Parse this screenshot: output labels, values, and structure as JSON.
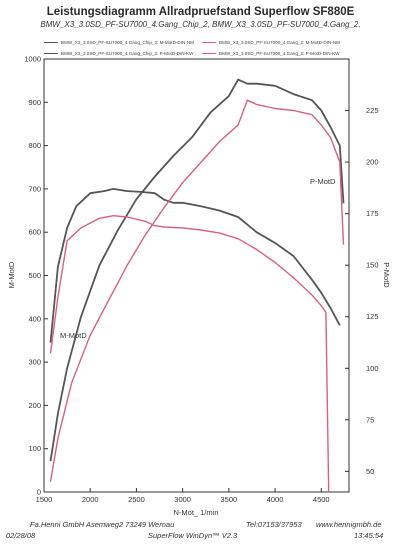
{
  "chart_data": {
    "type": "line",
    "title": "Leistungsdiagramm Allradpruefstand Superflow SF880E",
    "subtitle": "BMW_X3_3.0SD_PF-SU7000_4.Gang_Chip_2, BMW_X3_3.0SD_PF-SU7000_4.Gang_2,",
    "xlabel": "N-Mot_ 1/min",
    "ylabel_left": "M-MotD",
    "ylabel_right": "P-MotD",
    "xlim": [
      1500,
      4800
    ],
    "ylim_left": [
      0,
      1000
    ],
    "ylim_right": [
      40,
      250
    ],
    "x_ticks": [
      1500,
      2000,
      2500,
      3000,
      3500,
      4000,
      4500
    ],
    "y_ticks_left": [
      0,
      100,
      200,
      300,
      400,
      500,
      600,
      700,
      800,
      900,
      1000
    ],
    "y_ticks_right": [
      50,
      75,
      100,
      125,
      150,
      175,
      200,
      225
    ],
    "grid": false,
    "legend": [
      "BMW_X3_3.0SD_PF-SU7000_4.Gang_Chip_2: M-MotD-DIN-NM",
      "BMW_X3_3.0SD_PF-SU7000_4.Gang_Chip_2: P-MotD-DIN-KW",
      "BMW_X3_3.0SD_PF-SU7000_4.Gang_2: M-MotD-DIN-NM",
      "BMW_X3_3.0SD_PF-SU7000_4.Gang_2: P-MotD-DIN-KW"
    ],
    "annotations": [
      "M-MotD",
      "P-MotD"
    ],
    "series": [
      {
        "axis": "left",
        "color": "#555555",
        "x": [
          1570,
          1650,
          1750,
          1850,
          2000,
          2150,
          2250,
          2400,
          2550,
          2700,
          2800,
          2900,
          3000,
          3200,
          3400,
          3600,
          3800,
          4000,
          4200,
          4400,
          4500,
          4600,
          4700
        ],
        "y": [
          345,
          520,
          610,
          660,
          690,
          695,
          700,
          695,
          693,
          690,
          675,
          668,
          668,
          660,
          650,
          635,
          600,
          575,
          545,
          490,
          460,
          425,
          385
        ]
      },
      {
        "axis": "right",
        "color": "#555555",
        "x": [
          1570,
          1650,
          1750,
          1900,
          2100,
          2300,
          2500,
          2700,
          2900,
          3100,
          3300,
          3500,
          3600,
          3700,
          3800,
          4000,
          4200,
          4400,
          4500,
          4600,
          4700,
          4740
        ],
        "y": [
          55,
          78,
          100,
          125,
          150,
          167,
          182,
          193,
          203,
          212,
          224,
          232,
          240,
          238,
          238,
          237,
          233,
          230,
          225,
          217,
          208,
          180
        ]
      },
      {
        "axis": "left",
        "color": "#d9617e",
        "x": [
          1570,
          1650,
          1750,
          1900,
          2100,
          2250,
          2400,
          2600,
          2700,
          2800,
          3000,
          3200,
          3400,
          3600,
          3800,
          4000,
          4200,
          4400,
          4500,
          4550,
          4580
        ],
        "y": [
          320,
          450,
          580,
          610,
          632,
          638,
          635,
          625,
          615,
          612,
          610,
          605,
          598,
          585,
          560,
          530,
          495,
          455,
          430,
          415,
          0
        ]
      },
      {
        "axis": "right",
        "color": "#d9617e",
        "x": [
          1570,
          1650,
          1800,
          2000,
          2200,
          2400,
          2600,
          2800,
          3000,
          3200,
          3400,
          3600,
          3700,
          3800,
          4000,
          4200,
          4400,
          4500,
          4600,
          4700,
          4740
        ],
        "y": [
          45,
          66,
          93,
          116,
          133,
          150,
          165,
          178,
          190,
          200,
          210,
          218,
          230,
          228,
          226,
          225,
          223,
          218,
          212,
          200,
          160
        ]
      }
    ]
  },
  "footer": {
    "company": "Fa.Henni GmbH    Asemweg2    73249 Wernau",
    "tel": "Tel:07153/37953",
    "website": "www.hennigmbh.de",
    "date": "02/28/08",
    "software": "SuperFlow WinDyn™ V2.3",
    "time": "13:45:54"
  }
}
